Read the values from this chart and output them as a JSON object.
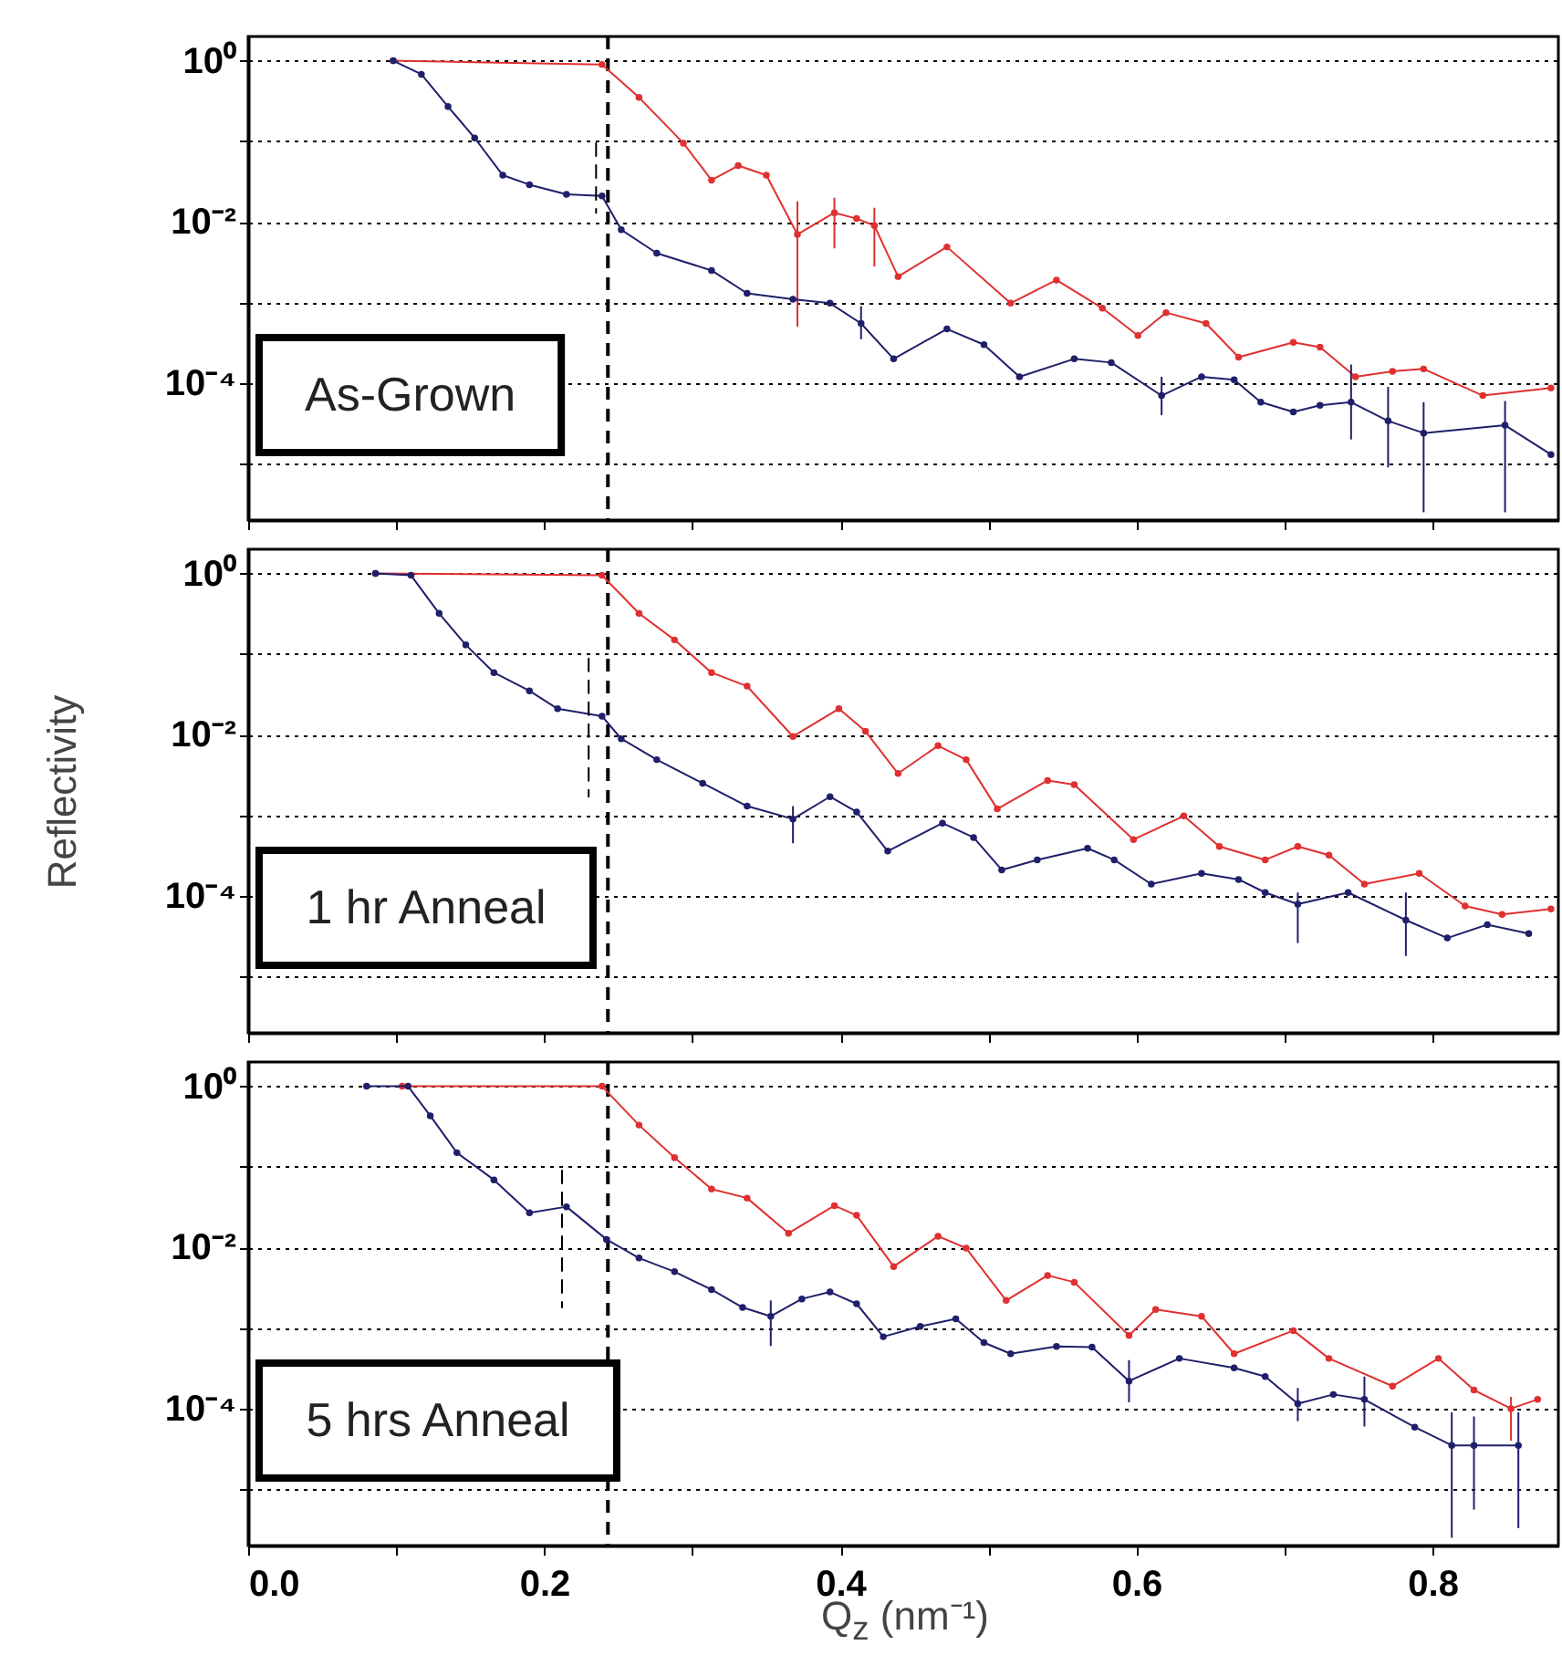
{
  "chart_data": [
    {
      "type": "line",
      "annotations": [
        "As-Grown"
      ],
      "xlim": [
        0,
        0.885
      ],
      "ylim": [
        2e-06,
        2
      ],
      "log": "y",
      "grid": "y",
      "tick_labels": "y",
      "xticks": [
        0,
        0.1,
        0.2,
        0.3,
        0.4,
        0.5,
        0.6,
        0.7,
        0.8
      ],
      "yticks": [
        {
          "value": 1,
          "label": "10⁰"
        },
        {
          "value": 0.1,
          "label": null
        },
        {
          "value": 0.01,
          "label": "10⁻²"
        },
        {
          "value": 0.001,
          "label": null
        },
        {
          "value": 0.0001,
          "label": "10⁻⁴"
        },
        {
          "value": 1e-05,
          "label": null
        }
      ],
      "ref_lines": [
        {
          "axis": "x",
          "value": 0.243,
          "color": "#000000",
          "line_style": "dashed"
        }
      ],
      "series": [
        {
          "color": "#e03030",
          "marker": "circle",
          "x": [
            0.098,
            0.239,
            0.264,
            0.294,
            0.313,
            0.331,
            0.35,
            0.371,
            0.396,
            0.411,
            0.423,
            0.439,
            0.472,
            0.515,
            0.546,
            0.577,
            0.601,
            0.62,
            0.647,
            0.669,
            0.706,
            0.724,
            0.748,
            0.773,
            0.794,
            0.834,
            0.88
          ],
          "values": [
            1.0,
            0.9,
            0.35,
            0.095,
            0.033,
            0.05,
            0.038,
            0.007,
            0.013,
            0.011,
            0.009,
            0.0021,
            0.0049,
            0.00098,
            0.0019,
            0.00085,
            0.00039,
            0.00075,
            0.00055,
            0.00021,
            0.00032,
            0.00028,
            0.00012,
            0.00014,
            0.00015,
            7e-05,
            8.7e-05
          ],
          "errors": [
            null,
            null,
            null,
            null,
            null,
            null,
            null,
            [
              0.0005,
              0.018
            ],
            [
              0.0047,
              0.02
            ],
            null,
            [
              0.0028,
              0.015
            ],
            null,
            null,
            null,
            null,
            null,
            null,
            null,
            null,
            null,
            null,
            null,
            null,
            null,
            null,
            null,
            null
          ]
        },
        {
          "color": "#1f1f6b",
          "marker": "circle",
          "x": [
            0.098,
            0.117,
            0.135,
            0.153,
            0.172,
            0.19,
            0.215,
            0.239,
            0.252,
            0.276,
            0.313,
            0.337,
            0.368,
            0.393,
            0.414,
            0.436,
            0.472,
            0.497,
            0.521,
            0.558,
            0.583,
            0.617,
            0.644,
            0.666,
            0.684,
            0.706,
            0.724,
            0.745,
            0.77,
            0.794,
            0.849,
            0.88
          ],
          "values": [
            1.0,
            0.68,
            0.27,
            0.11,
            0.038,
            0.029,
            0.022,
            0.021,
            0.008,
            0.0041,
            0.0025,
            0.0013,
            0.0011,
            0.00098,
            0.00055,
            0.0002,
            0.00047,
            0.0003,
            0.00012,
            0.0002,
            0.00018,
            7e-05,
            0.00012,
            0.00011,
            5.8e-05,
            4.4e-05,
            5.3e-05,
            5.8e-05,
            3.4e-05,
            2.4e-05,
            3e-05,
            1.3e-05
          ],
          "errors": [
            null,
            null,
            null,
            null,
            null,
            null,
            null,
            null,
            null,
            null,
            null,
            null,
            null,
            null,
            [
              0.00035,
              0.0009
            ],
            null,
            null,
            null,
            null,
            null,
            null,
            [
              4e-05,
              0.00012
            ],
            null,
            null,
            null,
            null,
            null,
            [
              2e-05,
              0.00017
            ],
            [
              9e-06,
              9e-05
            ],
            [
              2.5e-06,
              5.8e-05
            ],
            [
              2.5e-06,
              6e-05
            ],
            null
          ]
        },
        {
          "color": "#000000",
          "line_style": "dashed",
          "x": [
            0.235,
            0.235
          ],
          "values": [
            0.095,
            0.013
          ]
        }
      ]
    },
    {
      "type": "line",
      "annotations": [
        "1 hr Anneal"
      ],
      "ylabel": "Reflectivity",
      "xlim": [
        0,
        0.885
      ],
      "ylim": [
        2e-06,
        2
      ],
      "log": "y",
      "grid": "y",
      "tick_labels": "y",
      "xticks": [
        0,
        0.1,
        0.2,
        0.3,
        0.4,
        0.5,
        0.6,
        0.7,
        0.8
      ],
      "yticks": [
        {
          "value": 1,
          "label": "10⁰"
        },
        {
          "value": 0.1,
          "label": null
        },
        {
          "value": 0.01,
          "label": "10⁻²"
        },
        {
          "value": 0.001,
          "label": null
        },
        {
          "value": 0.0001,
          "label": "10⁻⁴"
        },
        {
          "value": 1e-05,
          "label": null
        }
      ],
      "ref_lines": [
        {
          "axis": "x",
          "value": 0.243,
          "color": "#000000",
          "line_style": "dashed"
        }
      ],
      "series": [
        {
          "color": "#e03030",
          "marker": "circle",
          "x": [
            0.086,
            0.239,
            0.264,
            0.288,
            0.313,
            0.337,
            0.368,
            0.399,
            0.417,
            0.439,
            0.466,
            0.485,
            0.506,
            0.54,
            0.558,
            0.598,
            0.632,
            0.656,
            0.687,
            0.709,
            0.73,
            0.754,
            0.791,
            0.822,
            0.847,
            0.88
          ],
          "values": [
            1.0,
            0.95,
            0.32,
            0.15,
            0.059,
            0.04,
            0.0095,
            0.021,
            0.011,
            0.0033,
            0.0073,
            0.0049,
            0.0012,
            0.0027,
            0.0024,
            0.0005,
            0.00098,
            0.00041,
            0.00028,
            0.00041,
            0.00032,
            0.00014,
            0.00019,
            7.5e-05,
            5.9e-05,
            6.9e-05
          ]
        },
        {
          "color": "#1f1f6b",
          "marker": "circle",
          "x": [
            0.086,
            0.11,
            0.129,
            0.147,
            0.166,
            0.19,
            0.209,
            0.239,
            0.252,
            0.276,
            0.307,
            0.337,
            0.368,
            0.393,
            0.411,
            0.432,
            0.469,
            0.49,
            0.509,
            0.533,
            0.567,
            0.585,
            0.61,
            0.644,
            0.669,
            0.687,
            0.709,
            0.743,
            0.782,
            0.81,
            0.837,
            0.865
          ],
          "values": [
            1.0,
            0.95,
            0.32,
            0.13,
            0.059,
            0.035,
            0.021,
            0.017,
            0.0089,
            0.0049,
            0.0025,
            0.0013,
            0.0009,
            0.0017,
            0.0011,
            0.00036,
            0.0008,
            0.00053,
            0.00021,
            0.00028,
            0.00039,
            0.00028,
            0.00014,
            0.00019,
            0.00016,
            0.00011,
            7.9e-05,
            0.00011,
            5e-05,
            3e-05,
            4.4e-05,
            3.4e-05
          ],
          "errors": [
            null,
            null,
            null,
            null,
            null,
            null,
            null,
            null,
            null,
            null,
            null,
            null,
            [
              0.00045,
              0.0013
            ],
            null,
            null,
            null,
            null,
            null,
            null,
            null,
            null,
            null,
            null,
            null,
            null,
            null,
            [
              2.6e-05,
              0.00011
            ],
            null,
            [
              1.8e-05,
              0.00011
            ],
            null,
            null,
            null
          ]
        },
        {
          "color": "#000000",
          "line_style": "dashed",
          "x": [
            0.23,
            0.23
          ],
          "values": [
            0.088,
            0.0017
          ]
        }
      ]
    },
    {
      "type": "line",
      "annotations": [
        "5 hrs Anneal"
      ],
      "xlabel": "Q$_{z}$ (nm⁻¹)",
      "xlim": [
        0,
        0.885
      ],
      "ylim": [
        2e-06,
        2
      ],
      "log": "y",
      "grid": "y",
      "xticks": [
        {
          "value": 0,
          "label": "0.0"
        },
        {
          "value": 0.1,
          "label": null
        },
        0.2,
        {
          "value": 0.3,
          "label": null
        },
        0.4,
        {
          "value": 0.5,
          "label": null
        },
        0.6,
        {
          "value": 0.7,
          "label": null
        },
        0.8
      ],
      "yticks": [
        {
          "value": 1,
          "label": "10⁰"
        },
        {
          "value": 0.1,
          "label": null
        },
        {
          "value": 0.01,
          "label": "10⁻²"
        },
        {
          "value": 0.001,
          "label": null
        },
        {
          "value": 0.0001,
          "label": "10⁻⁴"
        },
        {
          "value": 1e-05,
          "label": null
        }
      ],
      "ref_lines": [
        {
          "axis": "x",
          "value": 0.243,
          "color": "#000000",
          "line_style": "dashed"
        }
      ],
      "series": [
        {
          "color": "#e03030",
          "marker": "circle",
          "x": [
            0.104,
            0.239,
            0.264,
            0.288,
            0.313,
            0.337,
            0.365,
            0.396,
            0.411,
            0.436,
            0.466,
            0.485,
            0.512,
            0.54,
            0.558,
            0.595,
            0.613,
            0.644,
            0.666,
            0.706,
            0.73,
            0.773,
            0.804,
            0.828,
            0.853,
            0.871
          ],
          "values": [
            1.0,
            1.0,
            0.33,
            0.13,
            0.053,
            0.041,
            0.015,
            0.033,
            0.025,
            0.0058,
            0.0138,
            0.0098,
            0.0022,
            0.0045,
            0.0037,
            0.00081,
            0.0017,
            0.0014,
            0.00048,
            0.00093,
            0.00042,
            0.00019,
            0.00042,
            0.00017,
            0.0001,
            0.00013
          ],
          "errors": [
            null,
            null,
            null,
            null,
            null,
            null,
            null,
            null,
            null,
            null,
            null,
            null,
            null,
            null,
            null,
            null,
            null,
            null,
            null,
            null,
            null,
            null,
            null,
            null,
            [
              4e-05,
              0.00014
            ],
            null
          ]
        },
        {
          "color": "#1f1f6b",
          "marker": "circle",
          "x": [
            0.08,
            0.108,
            0.123,
            0.141,
            0.166,
            0.19,
            0.215,
            0.242,
            0.264,
            0.288,
            0.313,
            0.334,
            0.353,
            0.374,
            0.393,
            0.411,
            0.429,
            0.454,
            0.478,
            0.497,
            0.515,
            0.546,
            0.57,
            0.595,
            0.629,
            0.666,
            0.687,
            0.709,
            0.733,
            0.754,
            0.788,
            0.813,
            0.828,
            0.858
          ],
          "values": [
            1.0,
            1.0,
            0.43,
            0.15,
            0.069,
            0.027,
            0.032,
            0.0126,
            0.0074,
            0.005,
            0.003,
            0.0018,
            0.0014,
            0.0023,
            0.0028,
            0.002,
            0.00078,
            0.00105,
            0.0013,
            0.00066,
            0.00048,
            0.00059,
            0.00058,
            0.00022,
            0.00042,
            0.00032,
            0.00025,
            0.000115,
            0.00015,
            0.00013,
            5.9e-05,
            3.5e-05,
            3.5e-05,
            3.5e-05
          ],
          "errors": [
            null,
            null,
            null,
            null,
            null,
            null,
            null,
            null,
            null,
            null,
            null,
            null,
            [
              0.0006,
              0.0022
            ],
            null,
            null,
            null,
            null,
            null,
            null,
            null,
            null,
            null,
            null,
            [
              0.00012,
              0.0004
            ],
            null,
            null,
            null,
            [
              7e-05,
              0.00018
            ],
            null,
            [
              6e-05,
              0.00025
            ],
            null,
            [
              2.5e-06,
              9e-05
            ],
            [
              5.6e-06,
              8e-05
            ],
            [
              3.3e-06,
              9e-05
            ]
          ]
        },
        {
          "color": "#000000",
          "line_style": "dashed",
          "x": [
            0.212,
            0.212
          ],
          "values": [
            0.09,
            0.0018
          ]
        }
      ]
    }
  ]
}
